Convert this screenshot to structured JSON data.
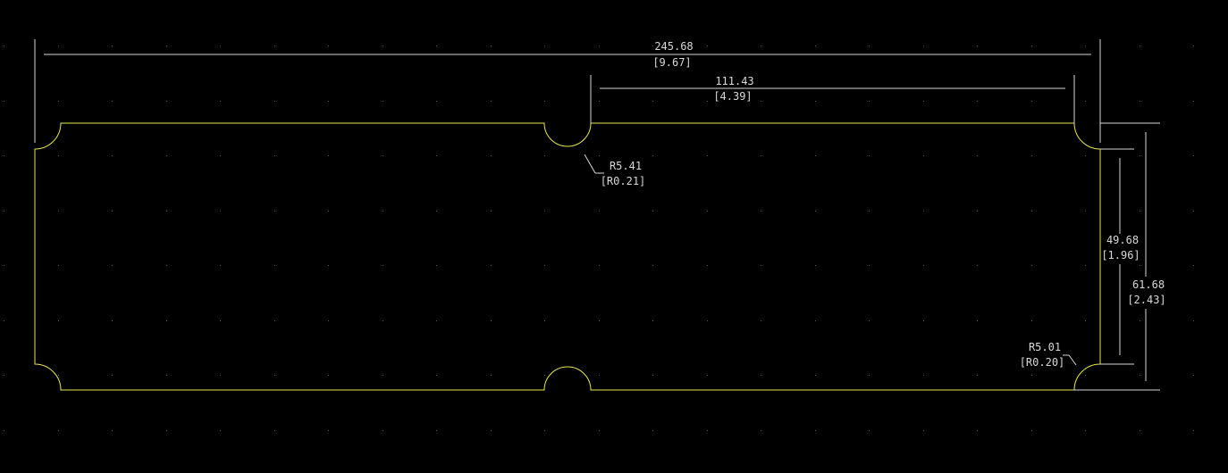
{
  "colors": {
    "background": "#000000",
    "outline": "#e8e84a",
    "dimension": "#d8d8d8",
    "grid": "#5a5a5a"
  },
  "dimensions": {
    "overall_width": {
      "mm": "245.68",
      "inch": "[9.67]"
    },
    "notch_to_right": {
      "mm": "111.43",
      "inch": "[4.39]"
    },
    "inner_height": {
      "mm": "49.68",
      "inch": "[1.96]"
    },
    "overall_height": {
      "mm": "61.68",
      "inch": "[2.43]"
    },
    "notch_radius": {
      "mm": "R5.41",
      "inch": "[R0.21]"
    },
    "corner_radius": {
      "mm": "R5.01",
      "inch": "[R0.20]"
    }
  }
}
